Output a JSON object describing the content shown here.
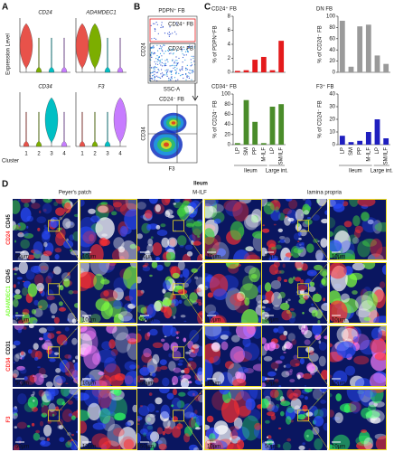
{
  "panel_labels": {
    "a": "A",
    "b": "B",
    "c": "C",
    "d": "D"
  },
  "panel_a": {
    "y_label": "Expression Level",
    "x_label": "Cluster",
    "clusters": [
      "1",
      "2",
      "3",
      "4"
    ],
    "cluster_colors": [
      "#e8524a",
      "#7cae00",
      "#00bfc4",
      "#c77cff"
    ],
    "genes": [
      "CD24",
      "ADAMDEC1",
      "CD34",
      "F3"
    ]
  },
  "panel_b": {
    "top_plot": {
      "title": "PDPN⁺ FB",
      "gate_high": "CD24⁺ FB",
      "gate_low": "CD24⁻ FB",
      "y_label": "CD24",
      "x_label": "SSC-A"
    },
    "bottom_plot": {
      "title": "CD24⁻ FB",
      "y_label": "CD34",
      "x_label": "F3"
    }
  },
  "chart_data": [
    {
      "type": "bar",
      "title": "CD24⁺ FB",
      "title_color": "#e41a1c",
      "color": "#e41a1c",
      "y_label": "% of PDPN⁺FB",
      "values": [
        0.2,
        0.3,
        1.8,
        2.2,
        0.3,
        4.5
      ],
      "ylim": [
        0,
        8
      ],
      "yticks": [
        0,
        2,
        4,
        6,
        8
      ]
    },
    {
      "type": "bar",
      "title": "DN FB",
      "title_color": "#111111",
      "color": "#9a9a9a",
      "y_label": "% of CD24⁻ FB",
      "values": [
        92,
        10,
        82,
        85,
        30,
        15
      ],
      "ylim": [
        0,
        100
      ],
      "yticks": [
        0,
        20,
        40,
        60,
        80,
        100
      ]
    },
    {
      "type": "bar",
      "title": "CD34⁺ FB",
      "title_color": "#3f8f1f",
      "color": "#4a8c2a",
      "y_label": "% of CD24⁻ FB",
      "categories": [
        "LP",
        "SM",
        "PP",
        "M-ILF",
        "LP",
        "SM/ILF"
      ],
      "values": [
        3,
        88,
        45,
        3,
        75,
        80
      ],
      "ylim": [
        0,
        100
      ],
      "yticks": [
        0,
        20,
        40,
        60,
        80,
        100
      ]
    },
    {
      "type": "bar",
      "title": "F3⁺ FB",
      "title_color": "#1f1fbf",
      "color": "#1f1fbf",
      "y_label": "% of CD24⁻ FB",
      "categories": [
        "LP",
        "SM",
        "PP",
        "M-ILF",
        "LP",
        "SM/ILF"
      ],
      "values": [
        7,
        2,
        3,
        10,
        20,
        5
      ],
      "ylim": [
        0,
        40
      ],
      "yticks": [
        0,
        10,
        20,
        30,
        40
      ]
    }
  ],
  "panel_c_groups": [
    "Ileum",
    "Large int."
  ],
  "panel_d": {
    "title": "Ileum",
    "columns": [
      "Peyer's patch",
      "M-ILF",
      "lamina propria"
    ],
    "rows": [
      {
        "markers": [
          {
            "text": "CD24",
            "color": "#ff3030"
          },
          {
            "text": "CD45",
            "color": "#ffffff"
          }
        ],
        "scale_bars": [
          "50µm",
          "10µm",
          "50µm",
          "10µm",
          "50µm",
          "10µm"
        ]
      },
      {
        "markers": [
          {
            "text": "ADAMDEC1",
            "color": "#7cff3a"
          },
          {
            "text": "CD45",
            "color": "#ffffff"
          }
        ],
        "scale_bars": [
          "50µm",
          "10µm",
          "50µm",
          "10µm",
          "50µm",
          "10µm"
        ]
      },
      {
        "markers": [
          {
            "text": "CD34",
            "color": "#ff3030"
          },
          {
            "text": "CD31",
            "color": "#ffffff"
          }
        ],
        "scale_bars": [
          "50µm",
          "10µm",
          "50µm",
          "10µm",
          "50µm",
          "10µm"
        ]
      },
      {
        "markers": [
          {
            "text": "F3",
            "color": "#ff3030"
          }
        ],
        "scale_bars": [
          "50µm",
          "10µm",
          "50µm",
          "10µm",
          "50µm",
          "10µm"
        ]
      }
    ]
  }
}
